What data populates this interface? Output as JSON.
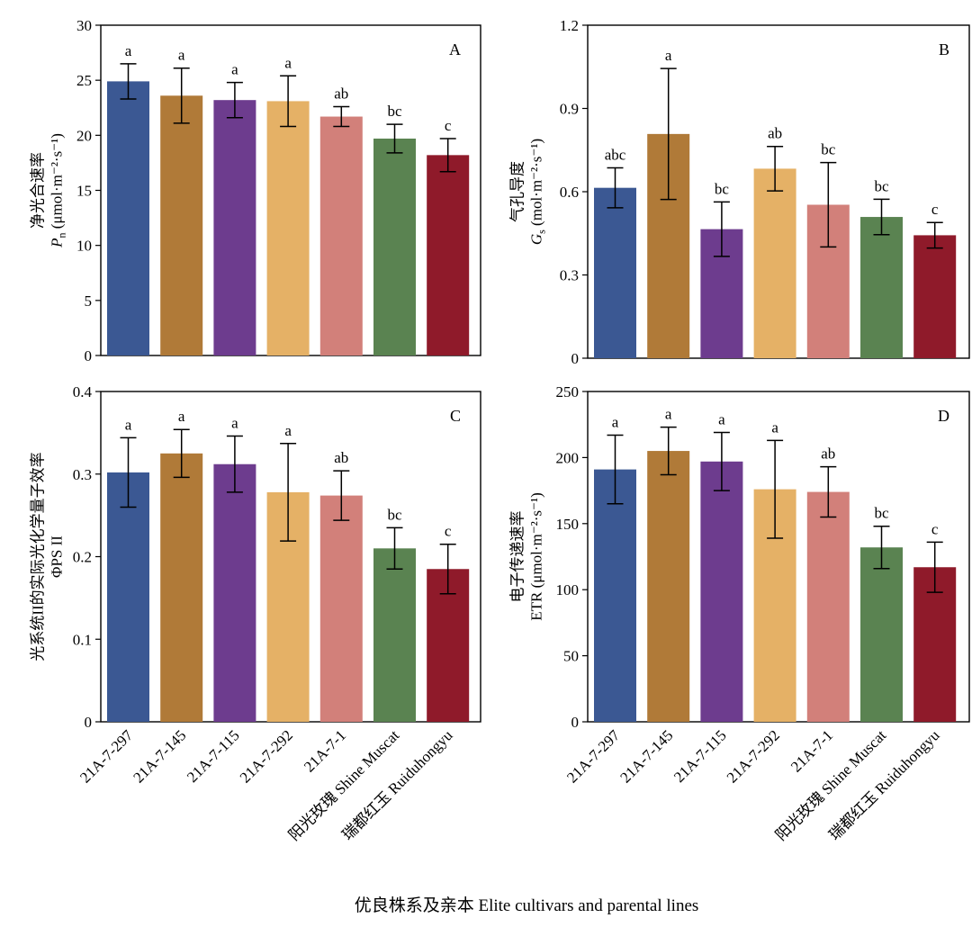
{
  "chart_data": {
    "type": "bar",
    "figure_xlabel": "优良株系及亲本 Elite cultivars and parental lines",
    "categories": [
      "21A-7-297",
      "21A-7-145",
      "21A-7-115",
      "21A-7-292",
      "21A-7-1",
      "阳光玫瑰 Shine Muscat",
      "瑞都红玉 Ruiduhongyu"
    ],
    "bar_colors": [
      "#3b5893",
      "#b07a38",
      "#6d3c8e",
      "#e5b166",
      "#d2807a",
      "#5a8351",
      "#8f1a2a"
    ],
    "panels": [
      {
        "id": "A",
        "label": "A",
        "ylabel_cn": "净光合速率",
        "ylabel_sym": "P",
        "ylabel_sub": "n",
        "ylabel_unit": " (μmol·m⁻²·s⁻¹)",
        "ylim": [
          0,
          30
        ],
        "yticks": [
          0,
          5,
          10,
          15,
          20,
          25,
          30
        ],
        "ytick_labels": [
          "0",
          "5",
          "10",
          "15",
          "20",
          "25",
          "30"
        ],
        "values": [
          24.9,
          23.6,
          23.2,
          23.1,
          21.7,
          19.7,
          18.2
        ],
        "errors": [
          1.6,
          2.5,
          1.6,
          2.3,
          0.9,
          1.3,
          1.5
        ],
        "letters": [
          "a",
          "a",
          "a",
          "a",
          "ab",
          "bc",
          "c"
        ]
      },
      {
        "id": "B",
        "label": "B",
        "ylabel_cn": "气孔导度",
        "ylabel_sym": "G",
        "ylabel_sub": "s",
        "ylabel_unit": " (mol·m⁻²·s⁻¹)",
        "ylim": [
          0,
          1.2
        ],
        "yticks": [
          0,
          0.3,
          0.6,
          0.9,
          1.2
        ],
        "ytick_labels": [
          "0",
          "0.3",
          "0.6",
          "0.9",
          "1.2"
        ],
        "values": [
          0.614,
          0.808,
          0.465,
          0.683,
          0.553,
          0.509,
          0.443
        ],
        "errors": [
          0.072,
          0.236,
          0.098,
          0.08,
          0.152,
          0.064,
          0.046
        ],
        "letters": [
          "abc",
          "a",
          "bc",
          "ab",
          "bc",
          "bc",
          "c"
        ]
      },
      {
        "id": "C",
        "label": "C",
        "ylabel_cn": "光系统II的实际光化学量子效率",
        "ylabel_sym": "ΦPS II",
        "ylabel_sub": "",
        "ylabel_unit": "",
        "ylim": [
          0,
          0.4
        ],
        "yticks": [
          0,
          0.1,
          0.2,
          0.3,
          0.4
        ],
        "ytick_labels": [
          "0",
          "0.1",
          "0.2",
          "0.3",
          "0.4"
        ],
        "values": [
          0.302,
          0.325,
          0.312,
          0.278,
          0.274,
          0.21,
          0.185
        ],
        "errors": [
          0.042,
          0.029,
          0.034,
          0.059,
          0.03,
          0.025,
          0.03
        ],
        "letters": [
          "a",
          "a",
          "a",
          "a",
          "ab",
          "bc",
          "c"
        ]
      },
      {
        "id": "D",
        "label": "D",
        "ylabel_cn": "电子传递速率",
        "ylabel_sym": "ETR",
        "ylabel_sub": "",
        "ylabel_unit": " (μmol·m⁻²·s⁻¹)",
        "ylim": [
          0,
          250
        ],
        "yticks": [
          0,
          50,
          100,
          150,
          200,
          250
        ],
        "ytick_labels": [
          "0",
          "50",
          "100",
          "150",
          "200",
          "250"
        ],
        "values": [
          191,
          205,
          197,
          176,
          174,
          132,
          117
        ],
        "errors": [
          26,
          18,
          22,
          37,
          19,
          16,
          19
        ],
        "letters": [
          "a",
          "a",
          "a",
          "a",
          "ab",
          "bc",
          "c"
        ]
      }
    ]
  }
}
